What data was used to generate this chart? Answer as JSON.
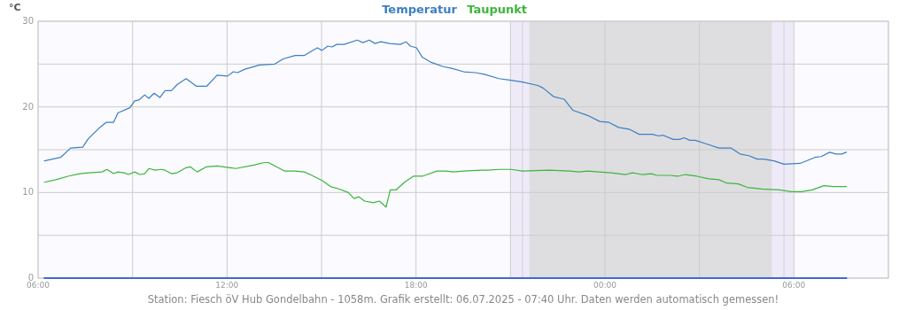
{
  "chart_data": {
    "type": "line",
    "ylabel": "°C",
    "legend": "top",
    "grid": true,
    "marker": "none",
    "line_style": "solid",
    "xlim": [
      "2025-07-05T06:00",
      "2025-07-06T09:00"
    ],
    "ylim": [
      0,
      30
    ],
    "xticks": [
      {
        "value": "2025-07-05T06:00",
        "label": "06:00"
      },
      {
        "value": "2025-07-05T09:00",
        "label": null
      },
      {
        "value": "2025-07-05T12:00",
        "label": "12:00"
      },
      {
        "value": "2025-07-05T15:00",
        "label": null
      },
      {
        "value": "2025-07-05T18:00",
        "label": "18:00"
      },
      {
        "value": "2025-07-05T21:00",
        "label": null
      },
      {
        "value": "2025-07-06T00:00",
        "label": "00:00"
      },
      {
        "value": "2025-07-06T03:00",
        "label": null
      },
      {
        "value": "2025-07-06T06:00",
        "label": "06:00"
      },
      {
        "value": "2025-07-06T09:00",
        "label": null
      }
    ],
    "yticks": [
      0,
      {
        "value": 5,
        "label": null
      },
      10,
      {
        "value": 15,
        "label": null
      },
      20,
      {
        "value": 25,
        "label": null
      },
      30
    ],
    "bands": [
      {
        "axis": "x",
        "from": "2025-07-05T21:00",
        "to": "2025-07-06T06:00",
        "color": "#efeaf8"
      },
      {
        "axis": "x",
        "from": "2025-07-05T21:36",
        "to": "2025-07-06T05:18",
        "color": "#dedee0"
      }
    ],
    "ref_lines": [
      {
        "axis": "x",
        "value": "2025-07-05T21:23",
        "color": "#d2d2d8"
      },
      {
        "axis": "x",
        "value": "2025-07-06T05:41",
        "color": "#d2d2d8"
      }
    ],
    "series": [
      {
        "name": "Temperatur",
        "color": "#3d7fc1",
        "x": [
          "2025-07-05T06:12",
          "2025-07-05T06:43",
          "2025-07-05T07:02",
          "2025-07-05T07:25",
          "2025-07-05T07:36",
          "2025-07-05T07:56",
          "2025-07-05T08:10",
          "2025-07-05T08:24",
          "2025-07-05T08:32",
          "2025-07-05T08:55",
          "2025-07-05T09:04",
          "2025-07-05T09:12",
          "2025-07-05T09:23",
          "2025-07-05T09:31",
          "2025-07-05T09:41",
          "2025-07-05T09:52",
          "2025-07-05T10:02",
          "2025-07-05T10:14",
          "2025-07-05T10:25",
          "2025-07-05T10:42",
          "2025-07-05T11:02",
          "2025-07-05T11:21",
          "2025-07-05T11:41",
          "2025-07-05T12:01",
          "2025-07-05T12:12",
          "2025-07-05T12:20",
          "2025-07-05T12:34",
          "2025-07-05T13:02",
          "2025-07-05T13:31",
          "2025-07-05T13:47",
          "2025-07-05T14:10",
          "2025-07-05T14:27",
          "2025-07-05T14:38",
          "2025-07-05T14:52",
          "2025-07-05T15:01",
          "2025-07-05T15:12",
          "2025-07-05T15:20",
          "2025-07-05T15:29",
          "2025-07-05T15:43",
          "2025-07-05T16:08",
          "2025-07-05T16:19",
          "2025-07-05T16:31",
          "2025-07-05T16:42",
          "2025-07-05T16:53",
          "2025-07-05T17:10",
          "2025-07-05T17:30",
          "2025-07-05T17:41",
          "2025-07-05T17:49",
          "2025-07-05T18:01",
          "2025-07-05T18:12",
          "2025-07-05T18:29",
          "2025-07-05T18:52",
          "2025-07-05T19:08",
          "2025-07-05T19:31",
          "2025-07-05T19:53",
          "2025-07-05T20:10",
          "2025-07-05T20:38",
          "2025-07-05T21:01",
          "2025-07-05T21:23",
          "2025-07-05T21:52",
          "2025-07-05T22:02",
          "2025-07-05T22:22",
          "2025-07-05T22:42",
          "2025-07-05T22:59",
          "2025-07-05T23:27",
          "2025-07-05T23:50",
          "2025-07-06T00:07",
          "2025-07-06T00:26",
          "2025-07-06T00:46",
          "2025-07-06T01:05",
          "2025-07-06T01:31",
          "2025-07-06T01:42",
          "2025-07-06T01:50",
          "2025-07-06T02:10",
          "2025-07-06T02:22",
          "2025-07-06T02:31",
          "2025-07-06T02:41",
          "2025-07-06T02:52",
          "2025-07-06T03:12",
          "2025-07-06T03:37",
          "2025-07-06T04:00",
          "2025-07-06T04:17",
          "2025-07-06T04:34",
          "2025-07-06T04:50",
          "2025-07-06T05:02",
          "2025-07-06T05:22",
          "2025-07-06T05:41",
          "2025-07-06T06:12",
          "2025-07-06T06:40",
          "2025-07-06T06:52",
          "2025-07-06T07:08",
          "2025-07-06T07:20",
          "2025-07-06T07:31",
          "2025-07-06T07:40"
        ],
        "values": [
          13.7,
          14.1,
          15.2,
          15.3,
          16.3,
          17.5,
          18.2,
          18.2,
          19.3,
          19.9,
          20.7,
          20.8,
          21.4,
          21.0,
          21.6,
          21.1,
          21.9,
          21.9,
          22.6,
          23.3,
          22.4,
          22.4,
          23.7,
          23.6,
          24.1,
          24.0,
          24.4,
          24.9,
          25.0,
          25.6,
          26.0,
          26.0,
          26.4,
          26.9,
          26.6,
          27.1,
          27.0,
          27.3,
          27.3,
          27.8,
          27.5,
          27.8,
          27.4,
          27.6,
          27.4,
          27.3,
          27.6,
          27.1,
          26.9,
          25.8,
          25.2,
          24.7,
          24.5,
          24.1,
          24.0,
          23.8,
          23.3,
          23.1,
          22.9,
          22.5,
          22.2,
          21.2,
          20.9,
          19.6,
          19.0,
          18.3,
          18.2,
          17.6,
          17.4,
          16.8,
          16.8,
          16.6,
          16.7,
          16.2,
          16.2,
          16.4,
          16.1,
          16.1,
          15.7,
          15.2,
          15.2,
          14.5,
          14.3,
          13.9,
          13.9,
          13.7,
          13.3,
          13.4,
          14.1,
          14.2,
          14.7,
          14.5,
          14.5,
          14.7
        ]
      },
      {
        "name": "Taupunkt",
        "color": "#3db53d",
        "x": [
          "2025-07-05T06:12",
          "2025-07-05T06:34",
          "2025-07-05T06:57",
          "2025-07-05T07:19",
          "2025-07-05T07:36",
          "2025-07-05T08:02",
          "2025-07-05T08:11",
          "2025-07-05T08:24",
          "2025-07-05T08:32",
          "2025-07-05T08:44",
          "2025-07-05T08:52",
          "2025-07-05T09:04",
          "2025-07-05T09:14",
          "2025-07-05T09:23",
          "2025-07-05T09:31",
          "2025-07-05T09:43",
          "2025-07-05T09:54",
          "2025-07-05T10:02",
          "2025-07-05T10:14",
          "2025-07-05T10:25",
          "2025-07-05T10:42",
          "2025-07-05T10:50",
          "2025-07-05T11:03",
          "2025-07-05T11:21",
          "2025-07-05T11:41",
          "2025-07-05T12:06",
          "2025-07-05T12:17",
          "2025-07-05T12:51",
          "2025-07-05T13:11",
          "2025-07-05T13:19",
          "2025-07-05T13:34",
          "2025-07-05T13:50",
          "2025-07-05T14:10",
          "2025-07-05T14:27",
          "2025-07-05T14:38",
          "2025-07-05T15:01",
          "2025-07-05T15:17",
          "2025-07-05T15:34",
          "2025-07-05T15:51",
          "2025-07-05T16:02",
          "2025-07-05T16:11",
          "2025-07-05T16:22",
          "2025-07-05T16:39",
          "2025-07-05T16:50",
          "2025-07-05T17:03",
          "2025-07-05T17:11",
          "2025-07-05T17:22",
          "2025-07-05T17:38",
          "2025-07-05T17:55",
          "2025-07-05T18:12",
          "2025-07-05T18:40",
          "2025-07-05T18:57",
          "2025-07-05T19:11",
          "2025-07-05T19:31",
          "2025-07-05T20:04",
          "2025-07-05T20:16",
          "2025-07-05T20:38",
          "2025-07-05T21:01",
          "2025-07-05T21:23",
          "2025-07-05T22:14",
          "2025-07-05T22:53",
          "2025-07-05T23:10",
          "2025-07-05T23:27",
          "2025-07-05T23:49",
          "2025-07-06T00:12",
          "2025-07-06T00:40",
          "2025-07-06T00:52",
          "2025-07-06T01:11",
          "2025-07-06T01:28",
          "2025-07-06T01:39",
          "2025-07-06T02:05",
          "2025-07-06T02:19",
          "2025-07-06T02:33",
          "2025-07-06T02:55",
          "2025-07-06T03:18",
          "2025-07-06T03:37",
          "2025-07-06T03:52",
          "2025-07-06T04:14",
          "2025-07-06T04:31",
          "2025-07-06T04:59",
          "2025-07-06T05:32",
          "2025-07-06T05:55",
          "2025-07-06T06:15",
          "2025-07-06T06:35",
          "2025-07-06T06:57",
          "2025-07-06T07:14",
          "2025-07-06T07:40"
        ],
        "values": [
          11.2,
          11.5,
          11.9,
          12.2,
          12.3,
          12.4,
          12.7,
          12.2,
          12.4,
          12.3,
          12.1,
          12.4,
          12.1,
          12.2,
          12.8,
          12.6,
          12.7,
          12.6,
          12.2,
          12.3,
          12.9,
          13.0,
          12.4,
          13.0,
          13.1,
          12.9,
          12.8,
          13.2,
          13.5,
          13.5,
          13.0,
          12.5,
          12.5,
          12.4,
          12.1,
          11.4,
          10.7,
          10.4,
          10.0,
          9.3,
          9.5,
          9.0,
          8.8,
          9.0,
          8.3,
          10.3,
          10.3,
          11.2,
          11.9,
          11.9,
          12.5,
          12.5,
          12.4,
          12.5,
          12.6,
          12.6,
          12.7,
          12.7,
          12.5,
          12.6,
          12.5,
          12.4,
          12.5,
          12.4,
          12.3,
          12.1,
          12.3,
          12.1,
          12.2,
          12.0,
          12.0,
          11.9,
          12.1,
          11.9,
          11.6,
          11.5,
          11.1,
          11.0,
          10.6,
          10.4,
          10.3,
          10.1,
          10.1,
          10.3,
          10.8,
          10.7,
          10.7
        ]
      },
      {
        "color": "#3f67dd",
        "x": [
          "2025-07-05T06:12",
          "2025-07-06T07:40"
        ],
        "values": [
          0,
          0
        ]
      }
    ],
    "annotations": [
      "Station: Fiesch öV Hub Gondelbahn - 1058m. Grafik erstellt: 06.07.2025 - 07:40 Uhr. Daten werden automatisch gemessen!"
    ]
  }
}
